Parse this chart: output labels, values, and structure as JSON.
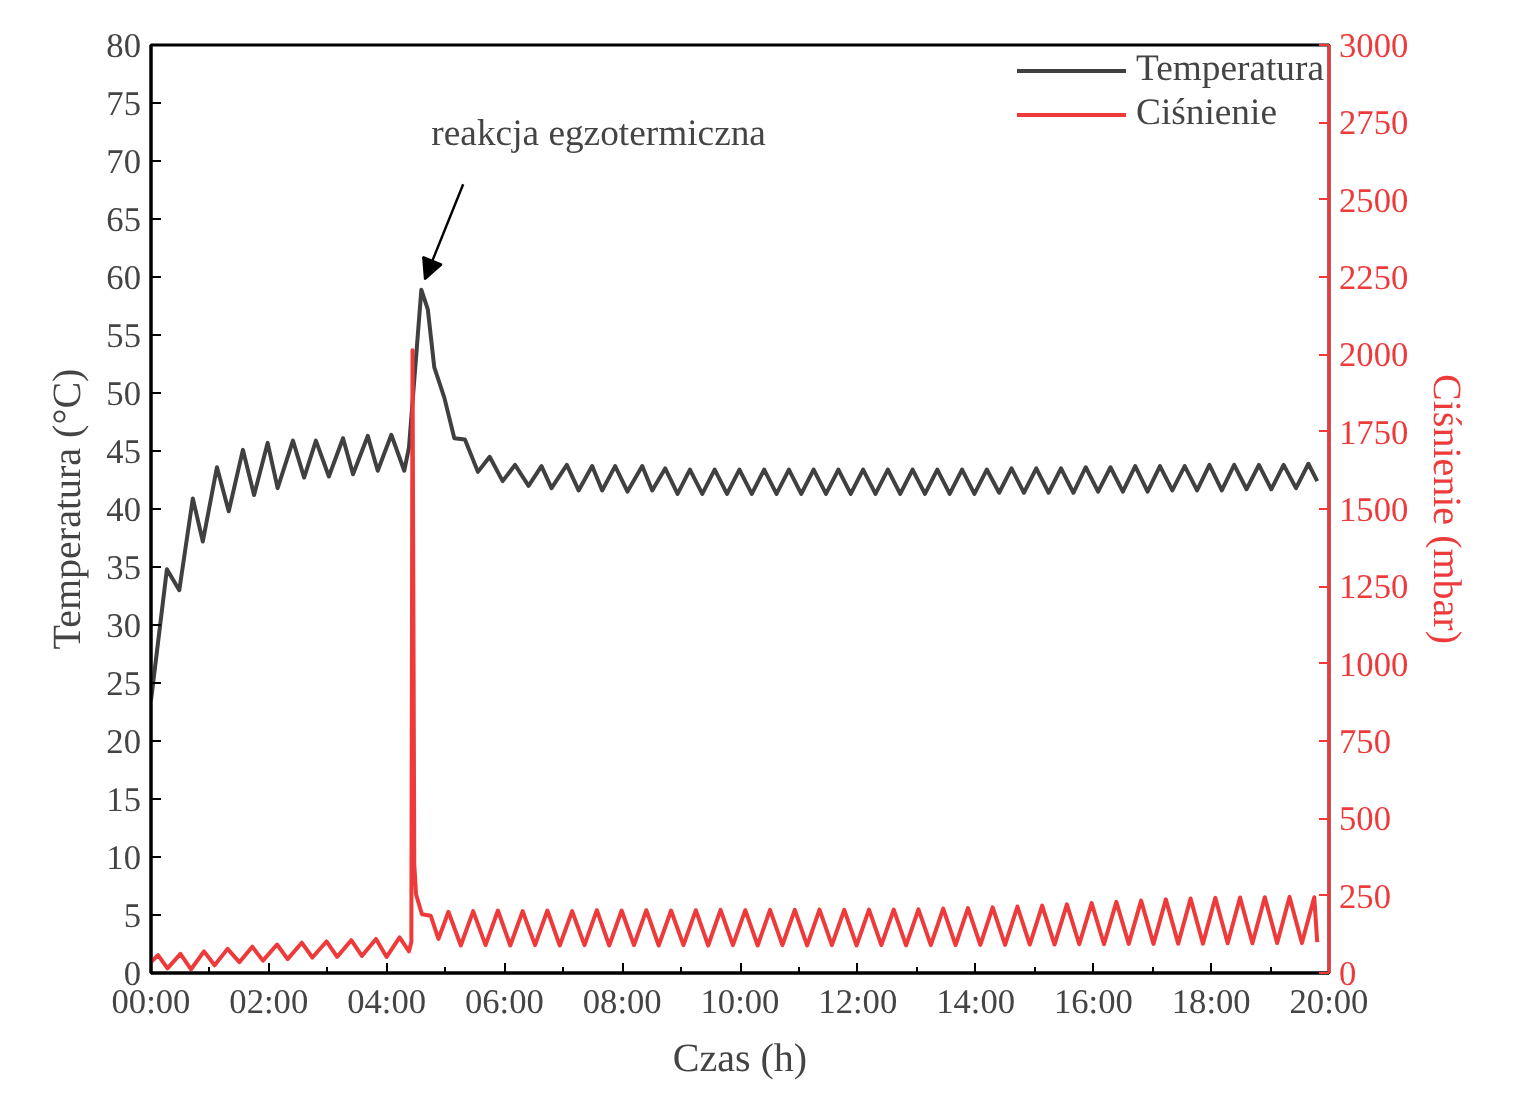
{
  "chart_data": {
    "type": "line",
    "xlabel": "Czas (h)",
    "ylabel": "Temperatura (°C)",
    "y2label": "Ciśnienie (mbar)",
    "xlim": [
      0,
      20
    ],
    "ylim": [
      0,
      80
    ],
    "y2lim": [
      0,
      3000
    ],
    "xticks": [
      {
        "value": 0,
        "label": "00:00"
      },
      {
        "value": 1,
        "label": null
      },
      {
        "value": 2,
        "label": "02:00"
      },
      {
        "value": 3,
        "label": null
      },
      {
        "value": 4,
        "label": "04:00"
      },
      {
        "value": 5,
        "label": null
      },
      {
        "value": 6,
        "label": "06:00"
      },
      {
        "value": 7,
        "label": null
      },
      {
        "value": 8,
        "label": "08:00"
      },
      {
        "value": 9,
        "label": null
      },
      {
        "value": 10,
        "label": "10:00"
      },
      {
        "value": 11,
        "label": null
      },
      {
        "value": 12,
        "label": "12:00"
      },
      {
        "value": 13,
        "label": null
      },
      {
        "value": 14,
        "label": "14:00"
      },
      {
        "value": 15,
        "label": null
      },
      {
        "value": 16,
        "label": "16:00"
      },
      {
        "value": 17,
        "label": null
      },
      {
        "value": 18,
        "label": "18:00"
      },
      {
        "value": 19,
        "label": null
      },
      {
        "value": 20,
        "label": "20:00"
      }
    ],
    "yticks": [
      0,
      5,
      10,
      15,
      20,
      25,
      30,
      35,
      40,
      45,
      50,
      55,
      60,
      65,
      70,
      75,
      80
    ],
    "y2ticks": [
      0,
      250,
      500,
      750,
      1000,
      1250,
      1500,
      1750,
      2000,
      2250,
      2500,
      2750,
      3000
    ],
    "grid": false,
    "legend": "top right",
    "marker": "none",
    "line_style": "solid",
    "annotations": [
      {
        "text": "reakcja egzotermiczna",
        "x": 4.6,
        "y": 59
      }
    ],
    "series": [
      {
        "name": "Temperatura",
        "color": "#404040",
        "x": [
          0,
          0.27,
          0.48,
          0.71,
          0.88,
          1.12,
          1.32,
          1.56,
          1.75,
          1.98,
          2.15,
          2.41,
          2.6,
          2.8,
          3.02,
          3.26,
          3.43,
          3.68,
          3.85,
          4.08,
          4.3,
          4.38,
          4.59,
          4.7,
          4.81,
          4.98,
          5.15,
          5.33,
          5.55,
          5.75,
          5.97,
          6.18,
          6.41,
          6.63,
          6.8,
          7.06,
          7.26,
          7.49,
          7.66,
          7.88,
          8.09,
          8.34,
          8.51,
          8.73,
          8.94,
          9.15,
          9.36,
          9.57,
          9.78,
          9.99,
          10.2,
          10.41,
          10.62,
          10.83,
          11.04,
          11.25,
          11.46,
          11.67,
          11.88,
          12.09,
          12.3,
          12.51,
          12.72,
          12.93,
          13.14,
          13.35,
          13.56,
          13.77,
          13.98,
          14.19,
          14.4,
          14.61,
          14.82,
          15.03,
          15.24,
          15.45,
          15.66,
          15.87,
          16.08,
          16.29,
          16.5,
          16.71,
          16.92,
          17.13,
          17.34,
          17.55,
          17.76,
          17.97,
          18.18,
          18.39,
          18.6,
          18.81,
          19.02,
          19.23,
          19.44,
          19.65,
          19.8
        ],
        "values": [
          23.5,
          34.8,
          33,
          40.9,
          37.2,
          43.6,
          39.8,
          45.1,
          41.2,
          45.7,
          41.8,
          45.9,
          42.7,
          45.9,
          42.8,
          46.1,
          43,
          46.3,
          43.3,
          46.4,
          43.3,
          45.3,
          58.9,
          57.2,
          52.2,
          49.6,
          46.1,
          46,
          43.2,
          44.5,
          42.4,
          43.8,
          42,
          43.7,
          41.8,
          43.8,
          41.6,
          43.7,
          41.6,
          43.7,
          41.5,
          43.7,
          41.6,
          43.5,
          41.3,
          43.4,
          41.3,
          43.4,
          41.3,
          43.4,
          41.3,
          43.4,
          41.3,
          43.4,
          41.3,
          43.4,
          41.3,
          43.4,
          41.3,
          43.4,
          41.3,
          43.4,
          41.3,
          43.4,
          41.3,
          43.4,
          41.3,
          43.4,
          41.3,
          43.4,
          41.4,
          43.5,
          41.4,
          43.5,
          41.4,
          43.5,
          41.4,
          43.6,
          41.5,
          43.6,
          41.5,
          43.7,
          41.5,
          43.7,
          41.6,
          43.7,
          41.6,
          43.8,
          41.6,
          43.8,
          41.7,
          43.8,
          41.7,
          43.8,
          41.8,
          43.9,
          42.4
        ]
      },
      {
        "name": "Ciśnienie",
        "color": "#ee3a3a",
        "axis": "y2",
        "x": [
          0,
          0.12,
          0.28,
          0.5,
          0.68,
          0.9,
          1.08,
          1.3,
          1.5,
          1.72,
          1.9,
          2.14,
          2.32,
          2.56,
          2.74,
          2.98,
          3.16,
          3.4,
          3.58,
          3.82,
          4.0,
          4.22,
          4.38,
          4.42,
          4.44,
          4.47,
          4.5,
          4.6,
          4.75,
          4.88,
          5.05,
          5.26,
          5.47,
          5.68,
          5.89,
          6.1,
          6.31,
          6.52,
          6.73,
          6.94,
          7.15,
          7.36,
          7.57,
          7.78,
          7.99,
          8.2,
          8.41,
          8.62,
          8.83,
          9.04,
          9.25,
          9.46,
          9.67,
          9.88,
          10.09,
          10.3,
          10.51,
          10.72,
          10.93,
          11.14,
          11.35,
          11.56,
          11.77,
          11.98,
          12.19,
          12.4,
          12.61,
          12.82,
          13.03,
          13.24,
          13.45,
          13.66,
          13.87,
          14.08,
          14.29,
          14.5,
          14.71,
          14.92,
          15.13,
          15.34,
          15.55,
          15.76,
          15.97,
          16.18,
          16.39,
          16.6,
          16.81,
          17.02,
          17.23,
          17.44,
          17.65,
          17.86,
          18.07,
          18.28,
          18.49,
          18.7,
          18.91,
          19.12,
          19.33,
          19.54,
          19.75,
          19.8
        ],
        "values": [
          35,
          58,
          15,
          62,
          12,
          70,
          25,
          78,
          35,
          85,
          40,
          92,
          45,
          98,
          50,
          102,
          52,
          106,
          55,
          110,
          52,
          115,
          70,
          100,
          2013,
          352,
          254,
          190,
          185,
          110,
          198,
          89,
          200,
          90,
          202,
          89,
          200,
          90,
          202,
          89,
          200,
          90,
          203,
          89,
          202,
          90,
          203,
          89,
          202,
          90,
          203,
          89,
          204,
          90,
          203,
          89,
          204,
          90,
          204,
          89,
          205,
          90,
          204,
          89,
          205,
          90,
          205,
          89,
          206,
          90,
          208,
          90,
          210,
          91,
          212,
          91,
          215,
          92,
          218,
          92,
          222,
          93,
          226,
          93,
          230,
          94,
          234,
          94,
          238,
          95,
          241,
          95,
          243,
          96,
          244,
          96,
          245,
          97,
          246,
          97,
          245,
          100
        ]
      }
    ]
  }
}
